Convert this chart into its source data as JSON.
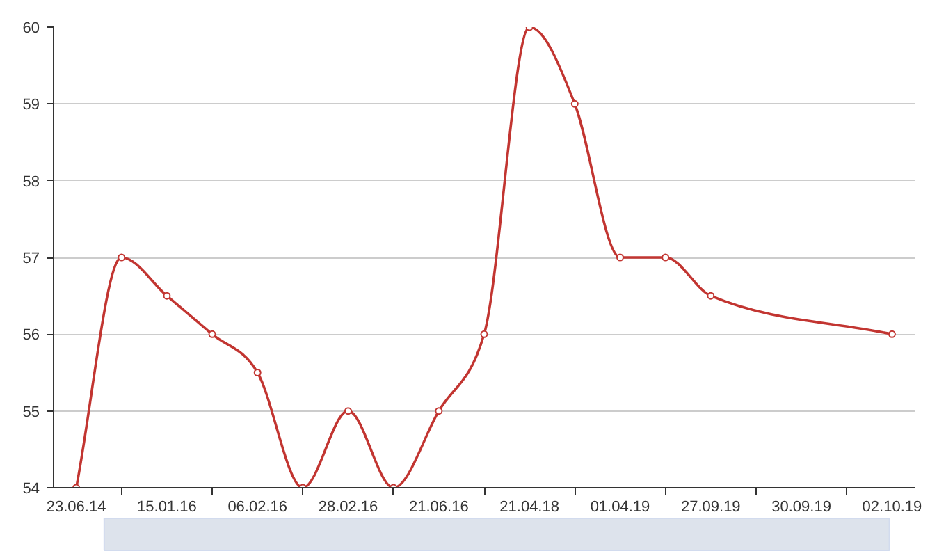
{
  "chart_data": {
    "type": "line",
    "categories": [
      "23.06.14",
      null,
      "15.01.16",
      null,
      "06.02.16",
      null,
      "28.02.16",
      null,
      "21.06.16",
      null,
      "21.04.18",
      null,
      "01.04.19",
      null,
      "27.09.19",
      null,
      "30.09.19",
      null,
      "02.10.19"
    ],
    "series": [
      {
        "color": "#c23531",
        "values": [
          54,
          57,
          56.5,
          56,
          55.5,
          54,
          55,
          54,
          55,
          56,
          60,
          59,
          57,
          57,
          56.5,
          null,
          null,
          null,
          56
        ]
      }
    ],
    "ylim": [
      54,
      60
    ],
    "yticks": [
      54,
      55,
      56,
      57,
      58,
      59,
      60
    ],
    "grid": "y",
    "marker": "circle",
    "line_style": "solid"
  }
}
